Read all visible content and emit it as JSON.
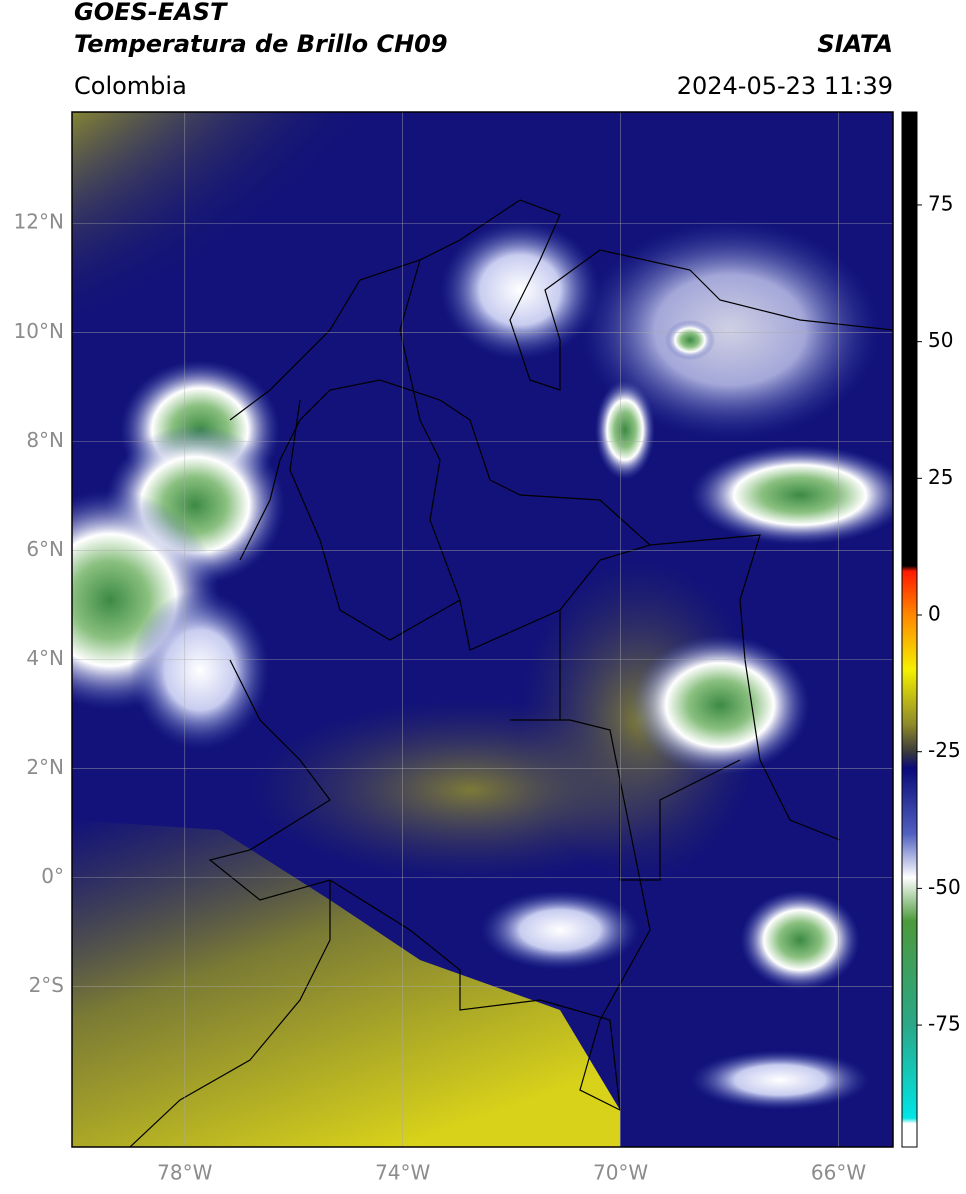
{
  "header": {
    "title": "GOES-EAST",
    "subtitle": "Temperatura de Brillo CH09",
    "source": "SIATA",
    "region": "Colombia",
    "datetime": "2024-05-23 11:39"
  },
  "map": {
    "latlim": [
      -4.94,
      14.04
    ],
    "lonlim": [
      -80.07,
      -65.0
    ],
    "latticks": [
      {
        "value": 12,
        "label": "12°N"
      },
      {
        "value": 10,
        "label": "10°N"
      },
      {
        "value": 8,
        "label": "8°N"
      },
      {
        "value": 6,
        "label": "6°N"
      },
      {
        "value": 4,
        "label": "4°N"
      },
      {
        "value": 2,
        "label": "2°N"
      },
      {
        "value": 0,
        "label": "0°"
      },
      {
        "value": -2,
        "label": "2°S"
      }
    ],
    "lonticks": [
      {
        "value": -78,
        "label": "78°W"
      },
      {
        "value": -74,
        "label": "74°W"
      },
      {
        "value": -70,
        "label": "70°W"
      },
      {
        "value": -66,
        "label": "66°W"
      }
    ],
    "grid": true
  },
  "colorbar": {
    "lim": [
      -97.3,
      92
    ],
    "ticks": [
      75,
      50,
      25,
      0,
      -25,
      -50,
      -75
    ],
    "stops": [
      {
        "value": 92,
        "color": "#000000"
      },
      {
        "value": 9,
        "color": "#000000"
      },
      {
        "value": 8,
        "color": "#ff1a00"
      },
      {
        "value": 0,
        "color": "#ff8800"
      },
      {
        "value": -10,
        "color": "#f5f000"
      },
      {
        "value": -20,
        "color": "#8e8a2a"
      },
      {
        "value": -25,
        "color": "#3a3a3a"
      },
      {
        "value": -28,
        "color": "#0a0a7a"
      },
      {
        "value": -40,
        "color": "#5060c0"
      },
      {
        "value": -48,
        "color": "#ffffff"
      },
      {
        "value": -56,
        "color": "#4c9a3c"
      },
      {
        "value": -75,
        "color": "#2aa888"
      },
      {
        "value": -92,
        "color": "#00e6e6"
      },
      {
        "value": -93,
        "color": "#ffffff"
      },
      {
        "value": -97.3,
        "color": "#ffffff"
      }
    ]
  }
}
